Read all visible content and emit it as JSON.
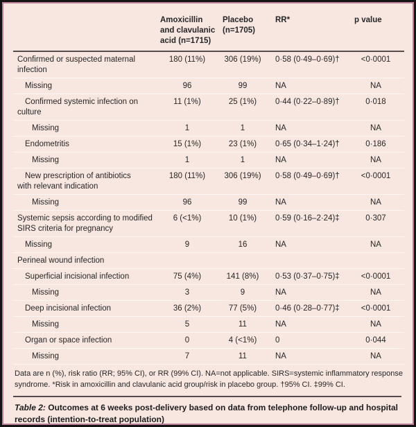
{
  "colors": {
    "page_background": "#f8e6e0",
    "panel_border": "#bd8096",
    "outer_frame": "#141414",
    "rule_dark": "#554d4b",
    "row_separator": "#ffffff",
    "text": "#262626"
  },
  "table": {
    "columns": {
      "label": "",
      "amox": "Amoxicillin\nand clavulanic\nacid (n=1715)",
      "placebo": "Placebo\n(n=1705)",
      "rr": "RR*",
      "p": "p value"
    },
    "rows": [
      {
        "label": "Confirmed or suspected maternal\ninfection",
        "indent": 0,
        "amox": "180 (11%)",
        "placebo": "306 (19%)",
        "rr": "0·58 (0·49–0·69)†",
        "p": "<0·0001"
      },
      {
        "label": "Missing",
        "indent": 1,
        "amox": "96",
        "placebo": "99",
        "rr": "NA",
        "p": "NA"
      },
      {
        "label": "Confirmed systemic infection on\nculture",
        "indent": 1,
        "amox": "11 (1%)",
        "placebo": "25 (1%)",
        "rr": "0·44 (0·22–0·89)†",
        "p": "0·018"
      },
      {
        "label": "Missing",
        "indent": 2,
        "amox": "1",
        "placebo": "1",
        "rr": "NA",
        "p": "NA"
      },
      {
        "label": "Endometritis",
        "indent": 1,
        "amox": "15 (1%)",
        "placebo": "23 (1%)",
        "rr": "0·65 (0·34–1·24)†",
        "p": "0·186"
      },
      {
        "label": "Missing",
        "indent": 2,
        "amox": "1",
        "placebo": "1",
        "rr": "NA",
        "p": "NA"
      },
      {
        "label": "New prescription of antibiotics\nwith relevant indication",
        "indent": 1,
        "amox": "180 (11%)",
        "placebo": "306 (19%)",
        "rr": "0·58 (0·49–0·69)†",
        "p": "<0·0001"
      },
      {
        "label": "Missing",
        "indent": 2,
        "amox": "96",
        "placebo": "99",
        "rr": "NA",
        "p": "NA"
      },
      {
        "label": "Systemic sepsis according to modified\nSIRS criteria for pregnancy",
        "indent": 0,
        "amox": "6 (<1%)",
        "placebo": "10 (1%)",
        "rr": "0·59 (0·16–2·24)‡",
        "p": "0·307"
      },
      {
        "label": "Missing",
        "indent": 1,
        "amox": "9",
        "placebo": "16",
        "rr": "NA",
        "p": "NA"
      },
      {
        "label": "Perineal wound infection",
        "indent": 0,
        "amox": "",
        "placebo": "",
        "rr": "",
        "p": ""
      },
      {
        "label": "Superficial incisional infection",
        "indent": 1,
        "amox": "75 (4%)",
        "placebo": "141 (8%)",
        "rr": "0·53 (0·37–0·75)‡",
        "p": "<0·0001"
      },
      {
        "label": "Missing",
        "indent": 2,
        "amox": "3",
        "placebo": "9",
        "rr": "NA",
        "p": "NA"
      },
      {
        "label": "Deep incisional infection",
        "indent": 1,
        "amox": "36 (2%)",
        "placebo": "77 (5%)",
        "rr": "0·46 (0·28–0·77)‡",
        "p": "<0·0001"
      },
      {
        "label": "Missing",
        "indent": 2,
        "amox": "5",
        "placebo": "11",
        "rr": "NA",
        "p": "NA"
      },
      {
        "label": "Organ or space infection",
        "indent": 1,
        "amox": "0",
        "placebo": "4 (<1%)",
        "rr": "0",
        "p": "0·044"
      },
      {
        "label": "Missing",
        "indent": 2,
        "amox": "7",
        "placebo": "11",
        "rr": "NA",
        "p": "NA"
      }
    ],
    "footnote": "Data are n (%), risk ratio (RR; 95% CI), or RR (99% CI). NA=not applicable. SIRS=systemic inflammatory response syndrome. *Risk in amoxicillin and clavulanic acid group/risk in placebo group. †95% CI. ‡99% CI.",
    "caption_label": "Table 2:",
    "caption_text": " Outcomes at 6 weeks post-delivery based on data from telephone follow-up and hospital records (intention-to-treat population)"
  }
}
